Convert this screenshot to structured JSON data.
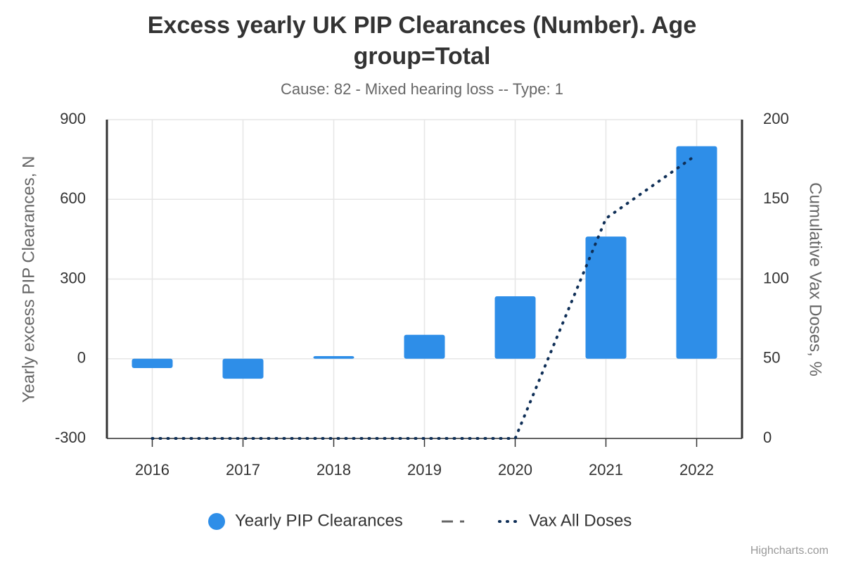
{
  "chart_data": {
    "type": "bar",
    "title": "Excess yearly UK PIP Clearances (Number). Age group=Total",
    "subtitle": "Cause: 82 - Mixed hearing loss -- Type: 1",
    "y_axis_label": "Yearly excess PIP Clearances, N",
    "y2_axis_label": "Cumulative Vax Doses, %",
    "categories": [
      "2016",
      "2017",
      "2018",
      "2019",
      "2020",
      "2021",
      "2022"
    ],
    "series": [
      {
        "name": "Yearly PIP Clearances",
        "type": "bar",
        "color": "#2e8ee8",
        "values": [
          -35,
          -75,
          10,
          90,
          235,
          460,
          800
        ]
      },
      {
        "name": "Vax All Doses",
        "type": "line",
        "axis": "y2",
        "color": "#0f2f57",
        "values": [
          0,
          0,
          0,
          0,
          0,
          138,
          178
        ]
      }
    ],
    "ylim": [
      -300,
      900
    ],
    "yticks": [
      -300,
      0,
      300,
      600,
      900
    ],
    "y2lim": [
      0,
      200
    ],
    "y2ticks": [
      0,
      50,
      100,
      150,
      200
    ],
    "grid": true,
    "credits": "Highcharts.com"
  }
}
